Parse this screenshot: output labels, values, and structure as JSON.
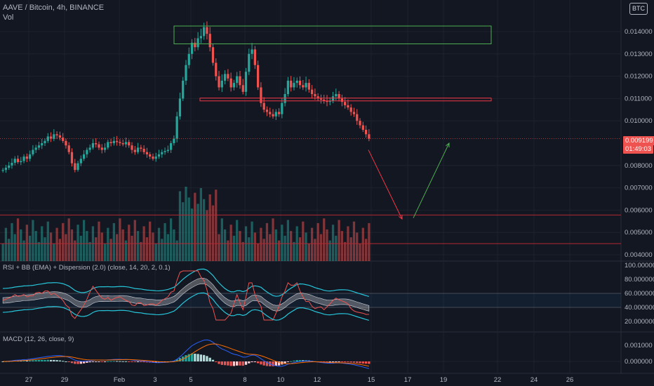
{
  "header": {
    "symbol_title": "AAVE / Bitcoin, 4h, BINANCE",
    "vol_label": "Vol",
    "currency_button": "BTC"
  },
  "price_panel": {
    "last_price_label": "0.009199",
    "countdown_label": "01:49:03",
    "y_ticks": [
      "0.014000",
      "0.013000",
      "0.012000",
      "0.011000",
      "0.010000",
      "0.008000",
      "0.007000",
      "0.006000",
      "0.005000",
      "0.004000"
    ],
    "colors": {
      "up": "#26a69a",
      "down": "#ef5350",
      "box_green": "#4caf50",
      "box_red": "#f23645",
      "arrow_up": "#4caf50",
      "arrow_down": "#f23645"
    }
  },
  "rsi_panel": {
    "title": "RSI + BB (EMA) + Dispersion (2.0) (close, 14, 20, 2, 0.1)",
    "y_ticks": [
      "100.000000",
      "80.000000",
      "60.000000",
      "40.000000",
      "20.000000"
    ]
  },
  "macd_panel": {
    "title": "MACD (12, 26, close, 9)",
    "y_ticks": [
      "0.001000",
      "0.000000"
    ]
  },
  "x_axis": {
    "labels": [
      "27",
      "29",
      "Feb",
      "3",
      "5",
      "8",
      "10",
      "12",
      "15",
      "17",
      "19",
      "22",
      "24",
      "26"
    ]
  },
  "chart_data": [
    {
      "type": "candlestick",
      "title": "AAVE / Bitcoin, 4h, BINANCE",
      "ylim": [
        0.004,
        0.0146
      ],
      "y_ticks": [
        0.014,
        0.013,
        0.012,
        0.011,
        0.01,
        0.008,
        0.007,
        0.006,
        0.005,
        0.004
      ],
      "last_price": 0.009199,
      "x_labels": [
        "27",
        "29",
        "Feb",
        "3",
        "5",
        "8",
        "10",
        "12",
        "15",
        "17",
        "19",
        "22",
        "24",
        "26"
      ],
      "close_series": [
        0.0078,
        0.0079,
        0.008,
        0.00812,
        0.0083,
        0.00815,
        0.0082,
        0.0084,
        0.0083,
        0.0085,
        0.0087,
        0.0088,
        0.0089,
        0.009,
        0.0091,
        0.0093,
        0.0092,
        0.0094,
        0.00935,
        0.00925,
        0.0091,
        0.0089,
        0.0086,
        0.0081,
        0.0078,
        0.0081,
        0.0083,
        0.0085,
        0.0087,
        0.0088,
        0.009,
        0.00895,
        0.0088,
        0.0087,
        0.0088,
        0.00905,
        0.009,
        0.0091,
        0.00905,
        0.009,
        0.00895,
        0.00905,
        0.0089,
        0.0087,
        0.0086,
        0.0088,
        0.00875,
        0.0086,
        0.0085,
        0.0084,
        0.0083,
        0.0084,
        0.0085,
        0.0086,
        0.00865,
        0.0087,
        0.009,
        0.0092,
        0.0102,
        0.011,
        0.0118,
        0.0125,
        0.013,
        0.0135,
        0.0133,
        0.0137,
        0.0138,
        0.0142,
        0.0139,
        0.0133,
        0.0126,
        0.012,
        0.0115,
        0.0118,
        0.0121,
        0.0119,
        0.0115,
        0.0117,
        0.012,
        0.0116,
        0.0113,
        0.0122,
        0.013,
        0.0132,
        0.0125,
        0.0115,
        0.0108,
        0.0105,
        0.0104,
        0.0103,
        0.0102,
        0.0104,
        0.0103,
        0.0108,
        0.0112,
        0.0118,
        0.0115,
        0.0117,
        0.0118,
        0.0116,
        0.0115,
        0.0117,
        0.0114,
        0.0112,
        0.0111,
        0.011,
        0.01095,
        0.0109,
        0.01085,
        0.0109,
        0.0111,
        0.0112,
        0.011,
        0.01085,
        0.0107,
        0.0106,
        0.0104,
        0.0103,
        0.01,
        0.0098,
        0.0096,
        0.0094,
        0.0092
      ],
      "volume_max": 0.00705,
      "annotations": [
        {
          "type": "rectangle",
          "color": "green",
          "y_range": [
            0.01345,
            0.01425
          ]
        },
        {
          "type": "rectangle",
          "color": "red",
          "y_range": [
            0.01095,
            0.01102
          ]
        },
        {
          "type": "hline",
          "color": "red",
          "y": 0.00578
        },
        {
          "type": "hline",
          "color": "red",
          "y": 0.0045
        },
        {
          "type": "arrow",
          "color": "red",
          "from": 0.0087,
          "to": 0.0056
        },
        {
          "type": "arrow",
          "color": "green",
          "from": 0.0056,
          "to": 0.009
        }
      ]
    },
    {
      "type": "line",
      "title": "RSI + BB (EMA) + Dispersion (2.0) (close, 14, 20, 2, 0.1)",
      "ylim": [
        20,
        100
      ],
      "y_ticks": [
        100,
        80,
        60,
        40,
        20
      ],
      "bands": [
        60,
        40
      ]
    },
    {
      "type": "bar",
      "title": "MACD (12, 26, close, 9)",
      "y_ticks": [
        0.001,
        0.0
      ]
    }
  ]
}
